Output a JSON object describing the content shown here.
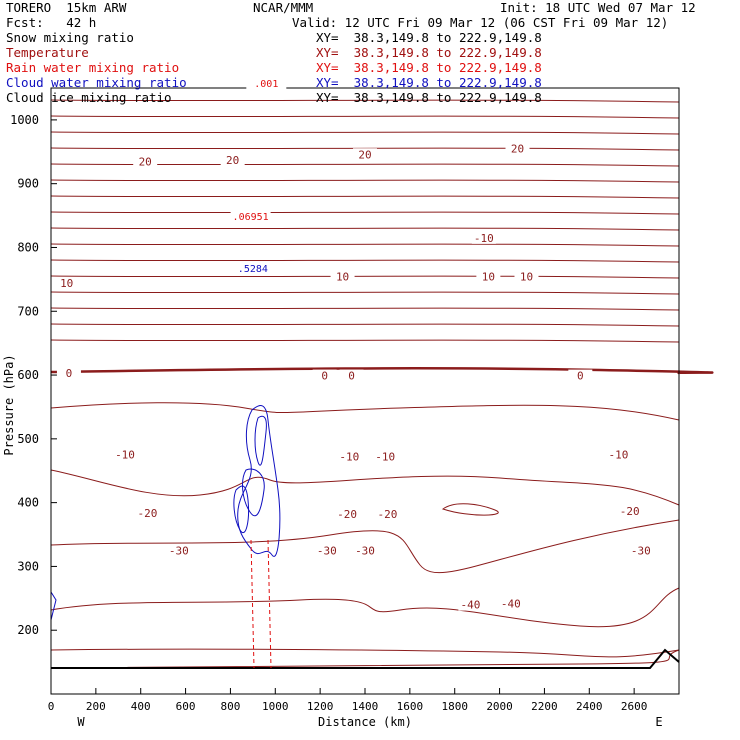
{
  "header": {
    "model": "TORERO  15km ARW",
    "fcst": "Fcst:   42 h",
    "center": "NCAR/MMM",
    "init": "Init: 18 UTC Wed 07 Mar 12",
    "valid": "Valid: 12 UTC Fri 09 Mar 12 (06 CST Fri 09 Mar 12)"
  },
  "legend": [
    {
      "label": "Snow mixing ratio",
      "xy": "XY=  38.3,149.8 to 222.9,149.8",
      "color": "#000000"
    },
    {
      "label": "Temperature",
      "xy": "XY=  38.3,149.8 to 222.9,149.8",
      "color": "#a01010"
    },
    {
      "label": "Rain water mixing ratio",
      "xy": "XY=  38.3,149.8 to 222.9,149.8",
      "color": "#e01010"
    },
    {
      "label": "Cloud water mixing ratio",
      "xy": "XY=  38.3,149.8 to 222.9,149.8",
      "color": "#1010c0"
    },
    {
      "label": "Cloud ice mixing ratio",
      "xy": "XY=  38.3,149.8 to 222.9,149.8",
      "color": "#000000"
    }
  ],
  "chart_data": {
    "type": "contour",
    "xlabel": "Distance (km)",
    "ylabel": "Pressure (hPa)",
    "xlim": [
      0,
      2800
    ],
    "ylim": [
      1050,
      100
    ],
    "xticks": [
      0,
      200,
      400,
      600,
      800,
      1000,
      1200,
      1400,
      1600,
      1800,
      2000,
      2200,
      2400,
      2600
    ],
    "yticks": [
      200,
      300,
      400,
      500,
      600,
      700,
      800,
      900,
      1000
    ],
    "x_endpoints": {
      "left": "W",
      "right": "E"
    },
    "temperature_labels": [
      {
        "text": "-40",
        "x": 1870,
        "p": 237
      },
      {
        "text": "-40",
        "x": 2050,
        "p": 239
      },
      {
        "text": "-30",
        "x": 570,
        "p": 322
      },
      {
        "text": "-30",
        "x": 1230,
        "p": 322
      },
      {
        "text": "-30",
        "x": 1400,
        "p": 322
      },
      {
        "text": "-30",
        "x": 2630,
        "p": 322
      },
      {
        "text": "-20",
        "x": 430,
        "p": 381
      },
      {
        "text": "-20",
        "x": 1320,
        "p": 379
      },
      {
        "text": "-20",
        "x": 1500,
        "p": 379
      },
      {
        "text": "-20",
        "x": 2580,
        "p": 384
      },
      {
        "text": "-10",
        "x": 330,
        "p": 472
      },
      {
        "text": "-10",
        "x": 1330,
        "p": 469
      },
      {
        "text": "-10",
        "x": 1490,
        "p": 469
      },
      {
        "text": "-10",
        "x": 2530,
        "p": 472
      },
      {
        "text": "0",
        "x": 80,
        "p": 600
      },
      {
        "text": "0",
        "x": 1220,
        "p": 596
      },
      {
        "text": "0",
        "x": 1340,
        "p": 596
      },
      {
        "text": "0",
        "x": 2360,
        "p": 596
      },
      {
        "text": "10",
        "x": 70,
        "p": 741
      },
      {
        "text": "10",
        "x": 1300,
        "p": 751
      },
      {
        "text": "10",
        "x": 1950,
        "p": 751
      },
      {
        "text": "10",
        "x": 2120,
        "p": 751
      },
      {
        "text": "-10",
        "x": 1930,
        "p": 812
      },
      {
        "text": "20",
        "x": 420,
        "p": 932
      },
      {
        "text": "20",
        "x": 810,
        "p": 934
      },
      {
        "text": "20",
        "x": 1400,
        "p": 943
      },
      {
        "text": "20",
        "x": 2080,
        "p": 952
      }
    ],
    "moisture_labels": [
      {
        "text": ".5284",
        "x": 900,
        "p": 763,
        "color": "#1010c0"
      },
      {
        "text": ".06951",
        "x": 890,
        "p": 845,
        "color": "#e01010"
      },
      {
        "text": ".001",
        "x": 960,
        "p": 1053,
        "color": "#e01010"
      }
    ]
  }
}
